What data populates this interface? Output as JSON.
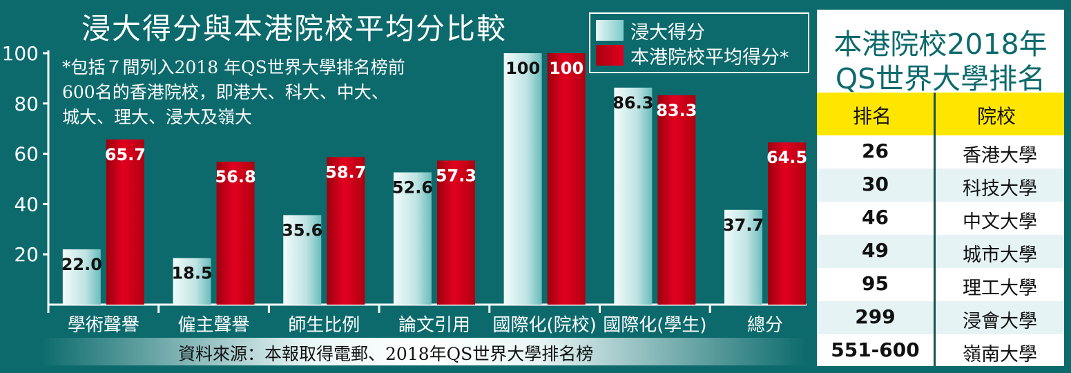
{
  "title": "浸大得分與本港院校平均分比較",
  "note": "*包括７間列入2018 年QS世界大學排名榜前\n600名的香港院校，即港大、科大、中大、\n城大、理大、浸大及嶺大",
  "source": "資料來源：本報取得電郵、2018年QS世界大學排名榜",
  "colors": {
    "background": "#0c6a6c",
    "series_hkbu": "#bfe3e3",
    "series_avg": "#d8001c",
    "header": "#ffe600"
  },
  "chart_data": {
    "type": "bar",
    "title": "浸大得分與本港院校平均分比較",
    "categories": [
      "學術聲譽",
      "僱主聲譽",
      "師生比例",
      "論文引用",
      "國際化(院校)",
      "國際化(學生)",
      "總分"
    ],
    "series": [
      {
        "name": "浸大得分",
        "values": [
          22.0,
          18.5,
          35.6,
          52.6,
          100,
          86.3,
          37.7
        ],
        "labels": [
          "22.0",
          "18.5",
          "35.6",
          "52.6",
          "100",
          "86.3",
          "37.7"
        ]
      },
      {
        "name": "本港院校平均得分*",
        "values": [
          65.7,
          56.8,
          58.7,
          57.3,
          100,
          83.3,
          64.5
        ],
        "labels": [
          "65.7",
          "56.8",
          "58.7",
          "57.3",
          "100",
          "83.3",
          "64.5"
        ]
      }
    ],
    "yticks": [
      20,
      40,
      60,
      80,
      100
    ],
    "ylim": [
      0,
      100
    ],
    "grid": false,
    "legend": "top-right"
  },
  "ranking": {
    "title_line1": "本港院校2018年",
    "title_line2": "QS世界大學排名",
    "header_rank": "排名",
    "header_school": "院校",
    "rows": [
      {
        "rank": "26",
        "school": "香港大學"
      },
      {
        "rank": "30",
        "school": "科技大學"
      },
      {
        "rank": "46",
        "school": "中文大學"
      },
      {
        "rank": "49",
        "school": "城市大學"
      },
      {
        "rank": "95",
        "school": "理工大學"
      },
      {
        "rank": "299",
        "school": "浸會大學"
      },
      {
        "rank": "551-600",
        "school": "嶺南大學"
      }
    ]
  }
}
